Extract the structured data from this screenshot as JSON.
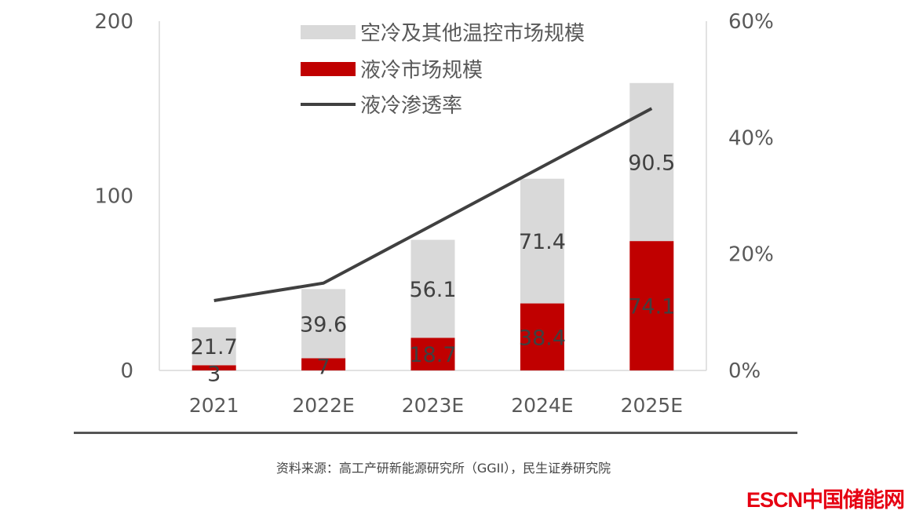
{
  "chart_data": {
    "type": "bar",
    "stacked": true,
    "categories": [
      "2021",
      "2022E",
      "2023E",
      "2024E",
      "2025E"
    ],
    "series": [
      {
        "name": "液冷市场规模",
        "type": "bar",
        "color": "#c00000",
        "values": [
          3,
          7,
          18.7,
          38.4,
          74.1
        ]
      },
      {
        "name": "空冷及其他温控市场规模",
        "type": "bar",
        "color": "#d9d9d9",
        "values": [
          21.7,
          39.6,
          56.1,
          71.4,
          90.5
        ]
      },
      {
        "name": "液冷渗透率",
        "type": "line",
        "axis": "right",
        "color": "#404040",
        "values": [
          12,
          15,
          25,
          35,
          45
        ]
      }
    ],
    "left_axis": {
      "ylim": [
        0,
        200
      ],
      "ticks": [
        "0",
        "100",
        "200"
      ]
    },
    "right_axis": {
      "ylim": [
        0,
        60
      ],
      "ticks": [
        "0%",
        "20%",
        "40%",
        "60%"
      ]
    },
    "legend": "top-center",
    "grid": false
  },
  "source": "资料来源：高工产研新能源研究所（GGII），民生证券研究院",
  "logo": "ESCN中国储能网"
}
